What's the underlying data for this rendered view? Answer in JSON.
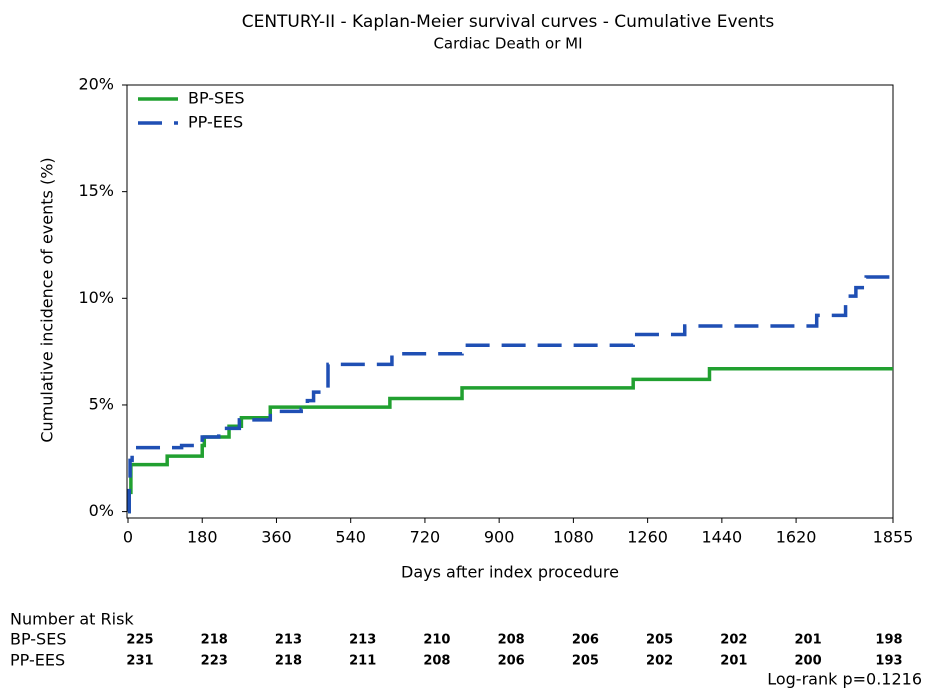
{
  "chart_data": {
    "type": "line",
    "step": true,
    "title": "CENTURY-II - Kaplan-Meier survival curves - Cumulative Events",
    "subtitle": "Cardiac Death or MI",
    "x_label": "Days after index procedure",
    "y_label": "Cumulative incidence of events (%)",
    "xlim": [
      0,
      1855
    ],
    "ylim": [
      -0.3,
      20
    ],
    "xticks": [
      0,
      180,
      360,
      540,
      720,
      900,
      1080,
      1260,
      1440,
      1620,
      1855
    ],
    "yticks": [
      {
        "value": 0,
        "label": "0%"
      },
      {
        "value": 5,
        "label": "5%"
      },
      {
        "value": 10,
        "label": "10%"
      },
      {
        "value": 15,
        "label": "15%"
      },
      {
        "value": 20,
        "label": "20%"
      }
    ],
    "legend": "top-left",
    "series": [
      {
        "name": "BP-SES",
        "color": "#21a030",
        "dash": false,
        "x": [
          0,
          3,
          7,
          95,
          180,
          185,
          245,
          275,
          345,
          635,
          810,
          1225,
          1410,
          1855
        ],
        "values": [
          0,
          0.9,
          2.2,
          2.6,
          3.1,
          3.5,
          4.0,
          4.4,
          4.9,
          5.3,
          5.8,
          6.2,
          6.7,
          6.7
        ]
      },
      {
        "name": "PP-EES",
        "color": "#1f4fb4",
        "dash": true,
        "x": [
          0,
          3,
          5,
          10,
          130,
          180,
          220,
          270,
          345,
          420,
          435,
          450,
          485,
          640,
          810,
          1225,
          1350,
          1670,
          1740,
          1765,
          1790,
          1855
        ],
        "values": [
          0,
          1.3,
          2.4,
          3.0,
          3.1,
          3.5,
          3.9,
          4.3,
          4.7,
          4.8,
          5.2,
          5.6,
          6.9,
          7.4,
          7.8,
          8.3,
          8.7,
          9.2,
          10.1,
          10.5,
          11.0,
          11.0
        ]
      }
    ],
    "number_at_risk": {
      "title": "Number at Risk",
      "rows": [
        {
          "name": "BP-SES",
          "values": [
            225,
            218,
            213,
            213,
            210,
            208,
            206,
            205,
            202,
            201,
            198
          ]
        },
        {
          "name": "PP-EES",
          "values": [
            231,
            223,
            218,
            211,
            208,
            206,
            205,
            202,
            201,
            200,
            193
          ]
        }
      ]
    },
    "annotation": "Log-rank p=0.1216"
  }
}
